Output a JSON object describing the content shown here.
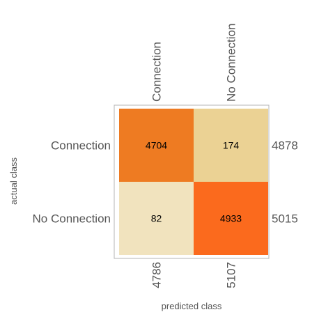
{
  "chart_data": {
    "type": "heatmap",
    "title": "",
    "xlabel": "predicted class",
    "ylabel": "actual class",
    "classes": [
      "Connection",
      "No Connection"
    ],
    "matrix": [
      [
        4704,
        174
      ],
      [
        82,
        4933
      ]
    ],
    "row_totals": [
      "4878",
      "5015"
    ],
    "column_totals": [
      "4786",
      "5107"
    ],
    "cell_colors": [
      [
        "#ee7b22",
        "#ebd294"
      ],
      [
        "#f1e3be",
        "#fb6a1d"
      ]
    ]
  }
}
